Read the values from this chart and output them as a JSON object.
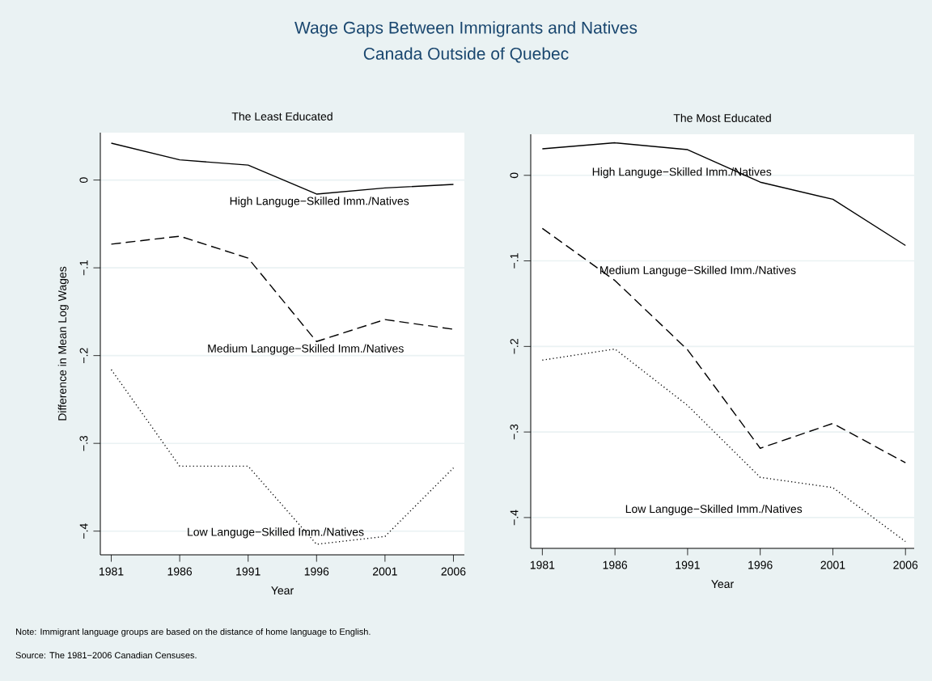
{
  "chart_data": [
    {
      "type": "other",
      "title": "Wage Gaps Between Immigrants and Natives",
      "subtitle": "Canada Outside of Quebec",
      "color": "#1a476f",
      "annotations": [
        "Note: Immigrant language groups are based on the distance of home language to English.",
        "Source: The 1981−2006 Canadian Censuses."
      ]
    },
    {
      "type": "line",
      "title": "The Least Educated",
      "xlabel": "Year",
      "ylabel": "Difference in Mean Log Wages",
      "x": [
        1981,
        1986,
        1991,
        1996,
        2001,
        2006
      ],
      "series": [
        {
          "name": "High Languge−Skilled Imm./Natives",
          "color": "#000000",
          "line_style": "solid",
          "values": [
            0.042,
            0.023,
            0.017,
            -0.016,
            -0.009,
            -0.005
          ]
        },
        {
          "name": "Medium Languge−Skilled Imm./Natives",
          "color": "#000000",
          "line_style": "dashed",
          "values": [
            -0.073,
            -0.064,
            -0.089,
            -0.184,
            -0.159,
            -0.17
          ]
        },
        {
          "name": "Low Languge−Skilled Imm./Natives",
          "color": "#000000",
          "line_style": "dotted",
          "values": [
            -0.216,
            -0.326,
            -0.326,
            -0.415,
            -0.406,
            -0.328
          ]
        }
      ],
      "xlim": [
        1980.2,
        2006.8
      ],
      "ylim": [
        -0.427,
        0.054
      ],
      "xticks": [
        1981,
        1986,
        1991,
        1996,
        2001,
        2006
      ],
      "yticks": [
        {
          "value": -0.4,
          "label": "−.4"
        },
        {
          "value": -0.3,
          "label": "−.3"
        },
        {
          "value": -0.2,
          "label": "−.2"
        },
        {
          "value": -0.1,
          "label": "−.1"
        },
        0
      ],
      "grid": "y"
    },
    {
      "type": "line",
      "title": "The Most Educated",
      "xlabel": "Year",
      "x": [
        1981,
        1986,
        1991,
        1996,
        2001,
        2006
      ],
      "series": [
        {
          "name": "High Languge−Skilled Imm./Natives",
          "color": "#000000",
          "line_style": "solid",
          "values": [
            0.031,
            0.038,
            0.03,
            -0.008,
            -0.028,
            -0.082
          ]
        },
        {
          "name": "Medium Languge−Skilled Imm./Natives",
          "color": "#000000",
          "line_style": "dashed",
          "values": [
            -0.062,
            -0.123,
            -0.204,
            -0.319,
            -0.29,
            -0.336
          ]
        },
        {
          "name": "Low Languge−Skilled Imm./Natives",
          "color": "#000000",
          "line_style": "dotted",
          "values": [
            -0.216,
            -0.203,
            -0.269,
            -0.353,
            -0.365,
            -0.428
          ]
        }
      ],
      "xlim": [
        1980.2,
        2006.6
      ],
      "ylim": [
        -0.436,
        0.048
      ],
      "xticks": [
        1981,
        1986,
        1991,
        1996,
        2001,
        2006
      ],
      "yticks": [
        {
          "value": -0.4,
          "label": "−.4"
        },
        {
          "value": -0.3,
          "label": "−.3"
        },
        {
          "value": -0.2,
          "label": "−.2"
        },
        {
          "value": -0.1,
          "label": "−.1"
        },
        0
      ],
      "grid": "y"
    }
  ]
}
